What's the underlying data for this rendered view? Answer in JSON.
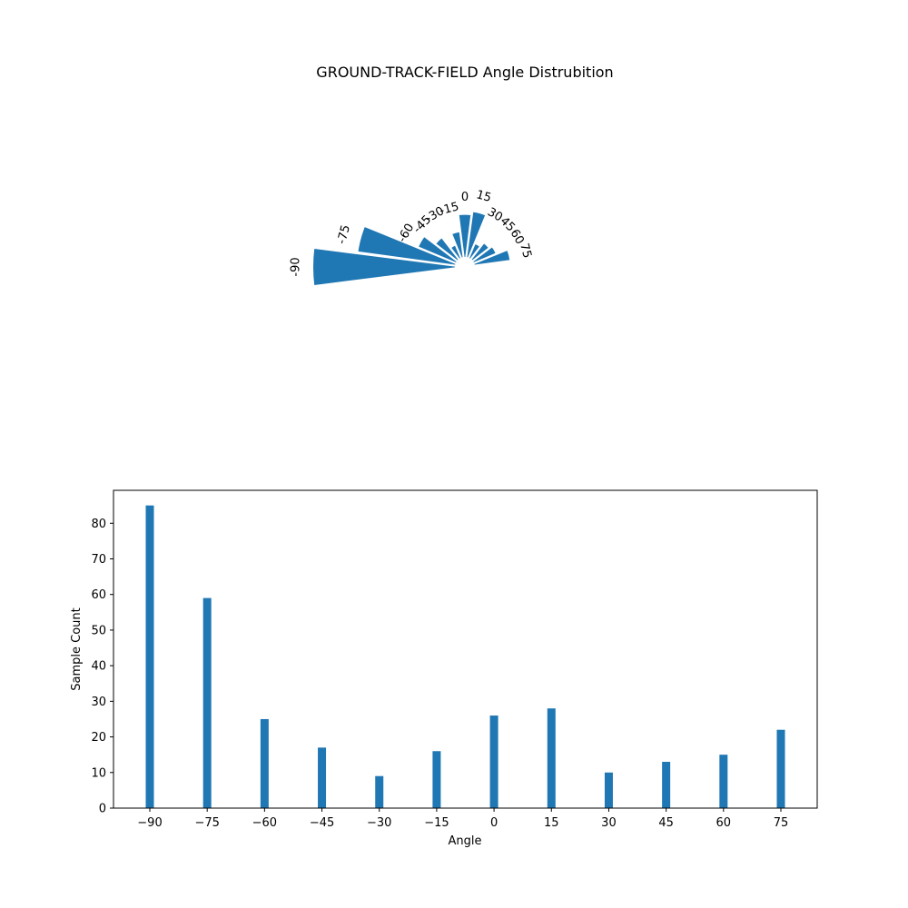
{
  "title": "GROUND-TRACK-FIELD Angle Distrubition",
  "chart_data": [
    {
      "type": "polar-bar",
      "title": "GROUND-TRACK-FIELD Angle Distrubition",
      "categories": [
        "-90",
        "-75",
        "-60",
        "-45",
        "-30",
        "-15",
        "0",
        "15",
        "30",
        "45",
        "60",
        "75"
      ],
      "values": [
        85,
        59,
        25,
        17,
        9,
        16,
        26,
        28,
        10,
        13,
        15,
        22
      ],
      "color": "#1f77b4"
    },
    {
      "type": "bar",
      "categories": [
        "−90",
        "−75",
        "−60",
        "−45",
        "−30",
        "−15",
        "0",
        "15",
        "30",
        "45",
        "60",
        "75"
      ],
      "values": [
        85,
        59,
        25,
        17,
        9,
        16,
        26,
        28,
        10,
        13,
        15,
        22
      ],
      "xlabel": "Angle",
      "ylabel": "Sample Count",
      "ylim": [
        0,
        89.25
      ],
      "yticks": [
        "0",
        "10",
        "20",
        "30",
        "40",
        "50",
        "60",
        "70",
        "80"
      ],
      "color": "#1f77b4",
      "grid": false
    }
  ]
}
